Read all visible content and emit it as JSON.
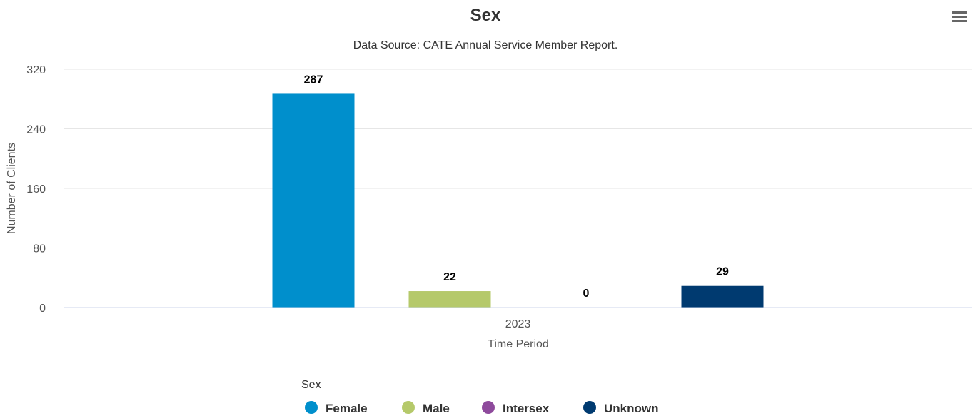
{
  "chart_data": {
    "type": "bar",
    "title": "Sex",
    "subtitle": "Data Source: CATE Annual Service Member Report.",
    "xlabel": "Time Period",
    "ylabel": "Number of Clients",
    "categories": [
      "2023"
    ],
    "ylim": [
      0,
      320
    ],
    "yticks": [
      0,
      80,
      160,
      240,
      320
    ],
    "grid": true,
    "legend_title": "Sex",
    "legend_position": "bottom",
    "series": [
      {
        "name": "Female",
        "values": [
          287
        ],
        "color": "#008fcc"
      },
      {
        "name": "Male",
        "values": [
          22
        ],
        "color": "#b5c96a"
      },
      {
        "name": "Intersex",
        "values": [
          0
        ],
        "color": "#8e4a9c"
      },
      {
        "name": "Unknown",
        "values": [
          29
        ],
        "color": "#003a70"
      }
    ]
  },
  "toolbar": {
    "menu_icon": "hamburger-menu-icon"
  }
}
